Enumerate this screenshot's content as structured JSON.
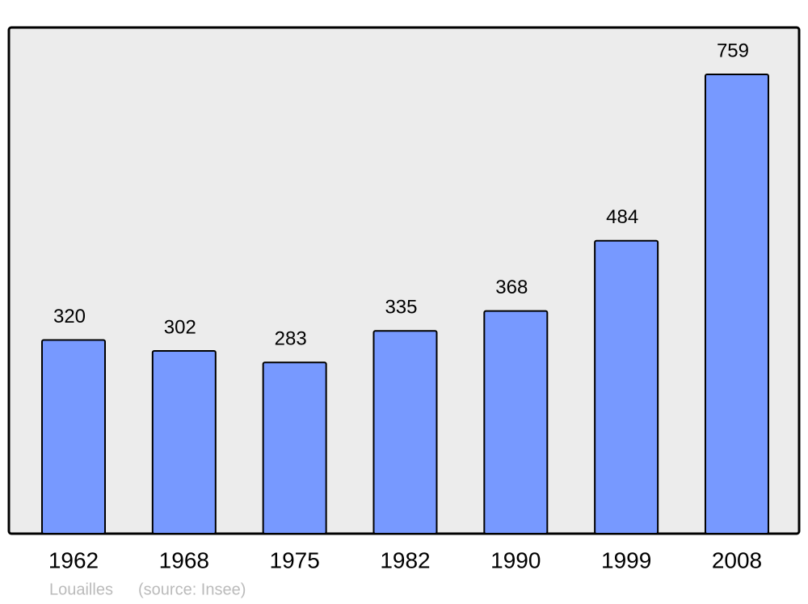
{
  "chart_data": {
    "type": "bar",
    "title": "Louailles",
    "source": "(source: Insee)",
    "categories": [
      "1962",
      "1968",
      "1975",
      "1982",
      "1990",
      "1999",
      "2008"
    ],
    "values": [
      320,
      302,
      283,
      335,
      368,
      484,
      759
    ],
    "color": "#7799ff"
  }
}
